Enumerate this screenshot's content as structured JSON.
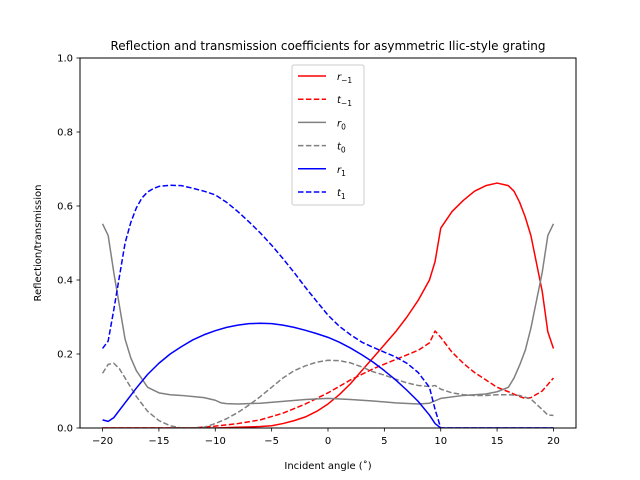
{
  "chart_data": {
    "type": "line",
    "title": "Reflection and transmission coefficients for asymmetric Ilic-style grating",
    "xlabel": "Incident angle (˚)",
    "ylabel": "Reflection/transmission",
    "xlim": [
      -22,
      22
    ],
    "ylim": [
      0,
      1
    ],
    "xticks": [
      -20,
      -15,
      -10,
      -5,
      0,
      5,
      10,
      15,
      20
    ],
    "yticks": [
      0.0,
      0.2,
      0.4,
      0.6,
      0.8,
      1.0
    ],
    "xtick_labels": [
      "−20",
      "−15",
      "−10",
      "−5",
      "0",
      "5",
      "10",
      "15",
      "20"
    ],
    "ytick_labels": [
      "0.0",
      "0.2",
      "0.4",
      "0.6",
      "0.8",
      "1.0"
    ],
    "grid": false,
    "legend_position": "top-center",
    "series": [
      {
        "name_main": "r",
        "name_sub": "−1",
        "color": "#ff0000",
        "dash": "solid",
        "x": [
          -20,
          -15,
          -12,
          -10,
          -8,
          -6,
          -5,
          -4,
          -3,
          -2,
          -1,
          0,
          1,
          2,
          3,
          4,
          5,
          6,
          7,
          8,
          9,
          9.5,
          10,
          11,
          12,
          13,
          14,
          15,
          16,
          16.5,
          17,
          17.5,
          18,
          19,
          19.5,
          20
        ],
        "y": [
          0,
          0,
          0,
          0,
          0.002,
          0.004,
          0.006,
          0.012,
          0.02,
          0.03,
          0.045,
          0.065,
          0.09,
          0.12,
          0.155,
          0.19,
          0.225,
          0.26,
          0.3,
          0.345,
          0.4,
          0.45,
          0.54,
          0.585,
          0.615,
          0.64,
          0.655,
          0.662,
          0.655,
          0.64,
          0.61,
          0.57,
          0.52,
          0.37,
          0.26,
          0.215
        ]
      },
      {
        "name_main": "t",
        "name_sub": "−1",
        "color": "#ff0000",
        "dash": "dashed",
        "x": [
          -20,
          -12,
          -10,
          -8,
          -6,
          -4,
          -2,
          0,
          2,
          4,
          6,
          8,
          9,
          9.5,
          10,
          11,
          12,
          13,
          14,
          15,
          16,
          17,
          17.5,
          18,
          19,
          20
        ],
        "y": [
          0,
          0,
          0.005,
          0.012,
          0.022,
          0.04,
          0.065,
          0.095,
          0.13,
          0.16,
          0.185,
          0.21,
          0.23,
          0.262,
          0.245,
          0.205,
          0.175,
          0.15,
          0.13,
          0.11,
          0.098,
          0.085,
          0.08,
          0.082,
          0.1,
          0.135
        ]
      },
      {
        "name_main": "r",
        "name_sub": "0",
        "color": "#808080",
        "dash": "solid",
        "x": [
          -20,
          -19.5,
          -19,
          -18.5,
          -18,
          -17.5,
          -17,
          -16,
          -15,
          -14,
          -13,
          -12,
          -11,
          -10,
          -9.5,
          -9,
          -8,
          -6,
          -4,
          -2,
          0,
          2,
          4,
          6,
          8,
          9,
          10,
          12,
          14,
          15,
          16,
          16.5,
          17,
          17.5,
          18,
          19,
          19.5,
          20
        ],
        "y": [
          0.552,
          0.52,
          0.42,
          0.33,
          0.24,
          0.19,
          0.155,
          0.11,
          0.095,
          0.09,
          0.088,
          0.085,
          0.082,
          0.075,
          0.068,
          0.066,
          0.065,
          0.067,
          0.072,
          0.077,
          0.08,
          0.077,
          0.073,
          0.068,
          0.065,
          0.067,
          0.08,
          0.088,
          0.092,
          0.098,
          0.11,
          0.135,
          0.17,
          0.21,
          0.27,
          0.42,
          0.52,
          0.552
        ]
      },
      {
        "name_main": "t",
        "name_sub": "0",
        "color": "#808080",
        "dash": "dashed",
        "x": [
          -20,
          -19.5,
          -19,
          -18.5,
          -18,
          -17,
          -16,
          -15,
          -14,
          -13,
          -12,
          -11,
          -10,
          -9,
          -8,
          -7,
          -6,
          -5,
          -4,
          -3,
          -2,
          -1,
          0,
          1,
          2,
          3,
          4,
          5,
          6,
          7,
          8,
          9,
          9.5,
          10,
          11,
          12,
          13,
          14,
          15,
          16,
          17,
          18,
          19,
          19.5,
          20
        ],
        "y": [
          0.148,
          0.172,
          0.175,
          0.16,
          0.135,
          0.085,
          0.045,
          0.02,
          0.006,
          0.0,
          0.0,
          0.002,
          0.012,
          0.025,
          0.042,
          0.062,
          0.085,
          0.11,
          0.135,
          0.155,
          0.168,
          0.178,
          0.183,
          0.182,
          0.176,
          0.165,
          0.152,
          0.143,
          0.132,
          0.122,
          0.115,
          0.112,
          0.115,
          0.105,
          0.095,
          0.09,
          0.088,
          0.088,
          0.09,
          0.09,
          0.088,
          0.078,
          0.05,
          0.035,
          0.034
        ]
      },
      {
        "name_main": "r",
        "name_sub": "1",
        "color": "#0000ff",
        "dash": "solid",
        "x": [
          -20,
          -19.5,
          -19,
          -18,
          -17,
          -16,
          -15,
          -14,
          -13,
          -12,
          -11,
          -10,
          -9,
          -8,
          -7,
          -6,
          -5,
          -4,
          -3,
          -2,
          -1,
          0,
          1,
          2,
          3,
          4,
          5,
          6,
          7,
          8,
          9,
          9.5,
          10,
          11,
          20
        ],
        "y": [
          0.022,
          0.018,
          0.028,
          0.068,
          0.108,
          0.145,
          0.175,
          0.2,
          0.22,
          0.238,
          0.252,
          0.263,
          0.272,
          0.278,
          0.282,
          0.283,
          0.282,
          0.278,
          0.272,
          0.264,
          0.255,
          0.245,
          0.232,
          0.216,
          0.198,
          0.178,
          0.155,
          0.13,
          0.102,
          0.072,
          0.035,
          0.012,
          0.0,
          0.0,
          0.0
        ]
      },
      {
        "name_main": "t",
        "name_sub": "1",
        "color": "#0000ff",
        "dash": "dashed",
        "x": [
          -20,
          -19.5,
          -19,
          -18.5,
          -18,
          -17.5,
          -17,
          -16.5,
          -16,
          -15.5,
          -15,
          -14,
          -13,
          -12,
          -11,
          -10,
          -9,
          -8,
          -7,
          -6,
          -5,
          -4,
          -3,
          -2,
          -1,
          0,
          1,
          2,
          3,
          4,
          5,
          6,
          7,
          8,
          9,
          9.5,
          10,
          11,
          20
        ],
        "y": [
          0.215,
          0.235,
          0.32,
          0.41,
          0.5,
          0.555,
          0.595,
          0.622,
          0.638,
          0.647,
          0.653,
          0.656,
          0.655,
          0.648,
          0.64,
          0.63,
          0.61,
          0.585,
          0.557,
          0.527,
          0.494,
          0.458,
          0.42,
          0.38,
          0.342,
          0.305,
          0.275,
          0.252,
          0.232,
          0.218,
          0.205,
          0.192,
          0.175,
          0.15,
          0.11,
          0.05,
          0.0,
          0.0,
          0.0
        ]
      }
    ]
  }
}
